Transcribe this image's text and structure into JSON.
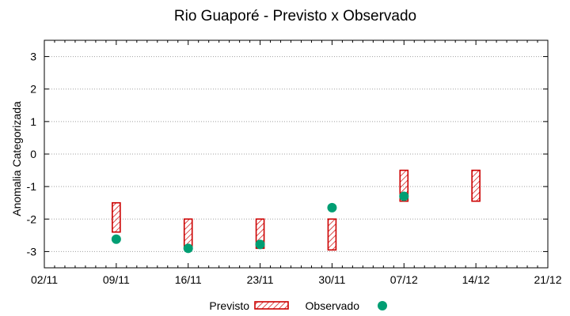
{
  "chart_data": {
    "type": "scatter",
    "title": "Rio Guaporé - Previsto x Observado",
    "xlabel": "",
    "ylabel": "Anomalia Categorizada",
    "x_ticks": [
      "02/11",
      "09/11",
      "16/11",
      "23/11",
      "30/11",
      "07/12",
      "14/12",
      "21/12"
    ],
    "xlim": [
      "2021-11-02",
      "2021-12-21"
    ],
    "ylim": [
      -3.5,
      3.5
    ],
    "y_ticks": [
      3,
      2,
      1,
      0,
      -1,
      -2,
      -3
    ],
    "grid": true,
    "legend_position": "bottom",
    "series": [
      {
        "name": "Previsto",
        "kind": "range-box",
        "color": "#cc0000",
        "points": [
          {
            "x": "2021-11-09",
            "low": -2.4,
            "high": -1.5
          },
          {
            "x": "2021-11-16",
            "low": -2.9,
            "high": -2.0
          },
          {
            "x": "2021-11-23",
            "low": -2.9,
            "high": -2.0
          },
          {
            "x": "2021-11-30",
            "low": -2.95,
            "high": -2.0
          },
          {
            "x": "2021-12-07",
            "low": -1.45,
            "high": -0.5
          },
          {
            "x": "2021-12-14",
            "low": -1.45,
            "high": -0.5
          }
        ]
      },
      {
        "name": "Observado",
        "kind": "point",
        "color": "#009e73",
        "points": [
          {
            "x": "2021-11-09",
            "y": -2.62
          },
          {
            "x": "2021-11-16",
            "y": -2.9
          },
          {
            "x": "2021-11-23",
            "y": -2.78
          },
          {
            "x": "2021-11-30",
            "y": -1.65
          },
          {
            "x": "2021-12-07",
            "y": -1.3
          }
        ]
      }
    ]
  }
}
